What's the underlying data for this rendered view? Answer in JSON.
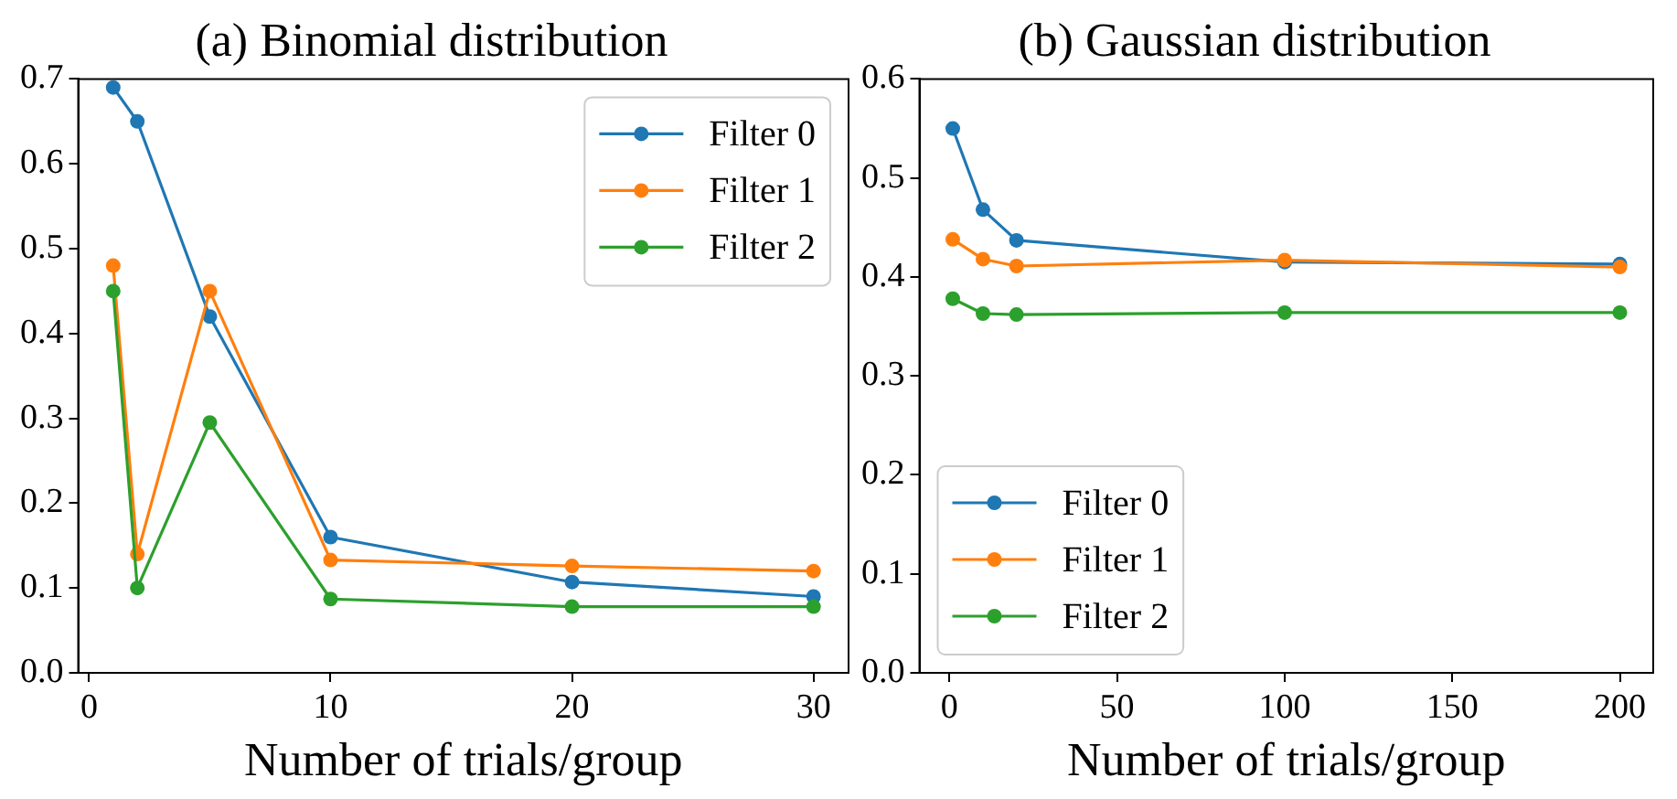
{
  "chart_data": [
    {
      "type": "line",
      "title": "(a) Binomial distribution",
      "xlabel": "Number of trials/group",
      "x": [
        1,
        2,
        5,
        10,
        20,
        30
      ],
      "series": [
        {
          "name": "Filter 0",
          "color": "#1f77b4",
          "values": [
            0.69,
            0.65,
            0.42,
            0.16,
            0.107,
            0.09
          ]
        },
        {
          "name": "Filter 1",
          "color": "#ff7f0e",
          "values": [
            0.48,
            0.14,
            0.45,
            0.133,
            0.126,
            0.12
          ]
        },
        {
          "name": "Filter 2",
          "color": "#2ca02c",
          "values": [
            0.45,
            0.1,
            0.295,
            0.087,
            0.078,
            0.078
          ]
        }
      ],
      "xlim": [
        -0.45,
        31.45
      ],
      "xticks": [
        0,
        10,
        20,
        30
      ],
      "ylim": [
        0,
        0.7
      ],
      "yticks": [
        {
          "value": 0,
          "label": "0.0"
        },
        0.1,
        0.2,
        0.3,
        0.4,
        0.5,
        0.6,
        0.7
      ],
      "grid": false,
      "legend": "top right",
      "marker": "circle",
      "line_style": "solid"
    },
    {
      "type": "line",
      "title": "(b) Gaussian distribution",
      "xlabel": "Number of trials/group",
      "x": [
        1,
        10,
        20,
        100,
        200
      ],
      "series": [
        {
          "name": "Filter 0",
          "color": "#1f77b4",
          "values": [
            0.55,
            0.468,
            0.437,
            0.415,
            0.413
          ]
        },
        {
          "name": "Filter 1",
          "color": "#ff7f0e",
          "values": [
            0.438,
            0.418,
            0.411,
            0.417,
            0.41
          ]
        },
        {
          "name": "Filter 2",
          "color": "#2ca02c",
          "values": [
            0.378,
            0.363,
            0.362,
            0.364,
            0.364
          ]
        }
      ],
      "xlim": [
        -8.95,
        209.95
      ],
      "xticks": [
        0,
        50,
        100,
        150,
        200
      ],
      "ylim": [
        0,
        0.6
      ],
      "yticks": [
        {
          "value": 0,
          "label": "0.0"
        },
        0.1,
        0.2,
        0.3,
        0.4,
        0.5,
        0.6
      ],
      "grid": false,
      "legend": "bottom left",
      "marker": "circle",
      "line_style": "solid"
    }
  ]
}
